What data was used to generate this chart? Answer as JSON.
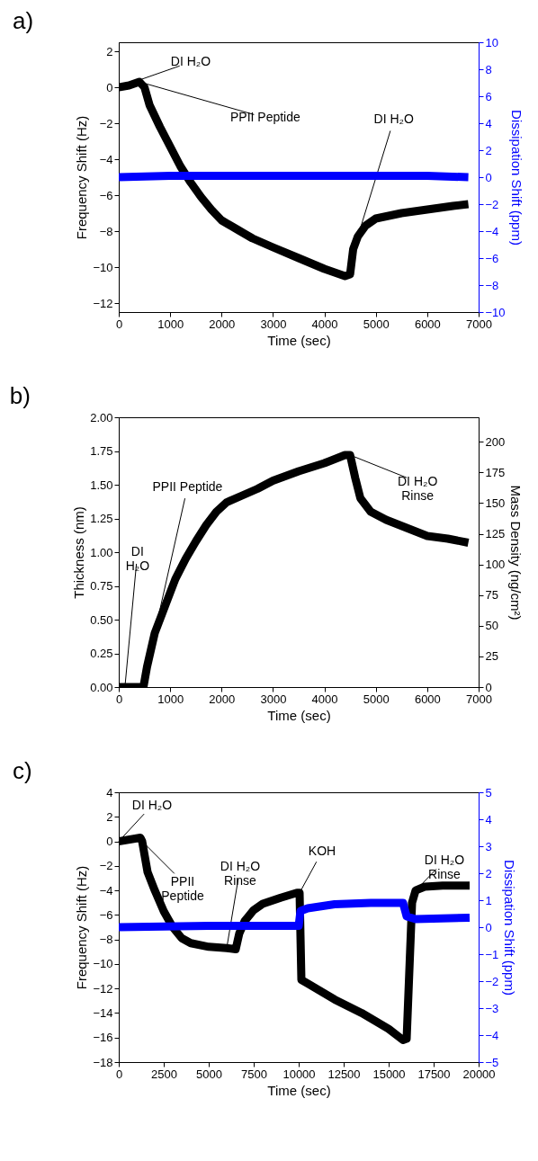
{
  "chart_data": [
    {
      "type": "line",
      "title": "a)",
      "xlabel": "Time (sec)",
      "ylabel": "Frequency Shift (Hz)",
      "y2label": "Dissipation Shift (ppm)",
      "xlim": [
        0,
        7000
      ],
      "xticks": [
        0,
        1000,
        2000,
        3000,
        4000,
        5000,
        6000,
        7000
      ],
      "ylim": [
        -12.5,
        2.5
      ],
      "yticks": [
        -12,
        -10,
        -8,
        -6,
        -4,
        -2,
        0,
        2
      ],
      "y2lim": [
        -10,
        10
      ],
      "y2ticks": [
        -10,
        -8,
        -6,
        -4,
        -2,
        0,
        2,
        4,
        6,
        8,
        10
      ],
      "series": [
        {
          "color": "#000000",
          "x": [
            0,
            200,
            400,
            500,
            600,
            800,
            1000,
            1200,
            1400,
            1600,
            1800,
            2000,
            2300,
            2600,
            3000,
            3500,
            4000,
            4400,
            4500,
            4560,
            4650,
            4800,
            5000,
            5500,
            6000,
            6500,
            6800
          ],
          "values": [
            0,
            0.1,
            0.3,
            0,
            -1,
            -2.2,
            -3.3,
            -4.4,
            -5.3,
            -6.1,
            -6.8,
            -7.4,
            -7.9,
            -8.4,
            -8.9,
            -9.5,
            -10.1,
            -10.5,
            -10.4,
            -9,
            -8.3,
            -7.7,
            -7.3,
            -7,
            -6.8,
            -6.6,
            -6.5
          ]
        },
        {
          "color": "#0000ff",
          "axis": "y2",
          "x": [
            0,
            1000,
            2000,
            3000,
            4000,
            5000,
            6000,
            6800
          ],
          "values": [
            0,
            0.1,
            0.1,
            0.1,
            0.1,
            0.1,
            0.1,
            0
          ]
        }
      ],
      "annotations": [
        {
          "text": "DI H₂O",
          "x": 0,
          "y": 0
        },
        {
          "text": "PPII Peptide",
          "x": 400,
          "y": 0.3
        },
        {
          "text": "DI H₂O",
          "x": 4650,
          "y": -8.3
        }
      ]
    },
    {
      "type": "line",
      "title": "b)",
      "xlabel": "Time (sec)",
      "ylabel": "Thickness (nm)",
      "y2label": "Mass Density (ng/cm²)",
      "xlim": [
        0,
        7000
      ],
      "xticks": [
        0,
        1000,
        2000,
        3000,
        4000,
        5000,
        6000,
        7000
      ],
      "ylim": [
        0,
        2
      ],
      "yticks": [
        {
          "value": 0,
          "label": "0.00"
        },
        {
          "value": 0.25,
          "label": "0.25"
        },
        {
          "value": 0.5,
          "label": "0.50"
        },
        {
          "value": 0.75,
          "label": "0.75"
        },
        {
          "value": 1,
          "label": "1.00"
        },
        {
          "value": 1.25,
          "label": "1.25"
        },
        {
          "value": 1.5,
          "label": "1.50"
        },
        {
          "value": 1.75,
          "label": "1.75"
        },
        {
          "value": 2,
          "label": "2.00"
        }
      ],
      "y2lim": [
        0,
        220
      ],
      "y2ticks": [
        0,
        25,
        50,
        75,
        100,
        125,
        150,
        175,
        200
      ],
      "series": [
        {
          "color": "#000000",
          "x": [
            0,
            120,
            400,
            480,
            550,
            700,
            900,
            1100,
            1300,
            1500,
            1700,
            1900,
            2100,
            2400,
            2700,
            3000,
            3500,
            4000,
            4400,
            4500,
            4600,
            4700,
            4900,
            5200,
            5600,
            6000,
            6400,
            6800
          ],
          "values": [
            0,
            0,
            0,
            0,
            0.15,
            0.4,
            0.6,
            0.8,
            0.95,
            1.08,
            1.2,
            1.3,
            1.37,
            1.42,
            1.47,
            1.53,
            1.6,
            1.66,
            1.72,
            1.72,
            1.55,
            1.4,
            1.3,
            1.24,
            1.18,
            1.12,
            1.1,
            1.07
          ]
        }
      ],
      "annotations": [
        {
          "text": "DI\nH₂O",
          "x": 120,
          "y": 0
        },
        {
          "text": "PPII Peptide",
          "x": 550,
          "y": 0.15
        },
        {
          "text": "DI H₂O\nRinse",
          "x": 4500,
          "y": 1.72
        }
      ]
    },
    {
      "type": "line",
      "title": "c)",
      "xlabel": "Time (sec)",
      "ylabel": "Frequency Shift (Hz)",
      "y2label": "Dissipation Shift (ppm)",
      "xlim": [
        0,
        20000
      ],
      "xticks": [
        0,
        2500,
        5000,
        7500,
        10000,
        12500,
        15000,
        17500,
        20000
      ],
      "ylim": [
        -18,
        4
      ],
      "yticks": [
        -18,
        -16,
        -14,
        -12,
        -10,
        -8,
        -6,
        -4,
        -2,
        0,
        2,
        4
      ],
      "y2lim": [
        -5,
        5
      ],
      "y2ticks": [
        -5,
        -4,
        -3,
        -2,
        -1,
        0,
        1,
        2,
        3,
        4,
        5
      ],
      "series": [
        {
          "color": "#000000",
          "x": [
            0,
            1200,
            1300,
            1600,
            2000,
            2500,
            3000,
            3500,
            4000,
            5000,
            6000,
            6500,
            6700,
            7000,
            7500,
            8000,
            9000,
            9900,
            10050,
            10150,
            10500,
            12000,
            13500,
            15000,
            15800,
            16000,
            16300,
            16500,
            17000,
            18000,
            19500
          ],
          "values": [
            0,
            0.3,
            0,
            -2.5,
            -4,
            -5.7,
            -7,
            -7.9,
            -8.3,
            -8.6,
            -8.7,
            -8.8,
            -7.5,
            -6.5,
            -5.6,
            -5.1,
            -4.6,
            -4.2,
            -4.2,
            -11.3,
            -11.6,
            -12.9,
            -14,
            -15.3,
            -16.2,
            -16.1,
            -5,
            -4,
            -3.7,
            -3.6,
            -3.6
          ]
        },
        {
          "color": "#0000ff",
          "axis": "y2",
          "x": [
            0,
            5000,
            10000,
            10100,
            10500,
            12000,
            14000,
            15800,
            16000,
            16500,
            19500
          ],
          "values": [
            0,
            0.05,
            0.05,
            0.6,
            0.7,
            0.85,
            0.9,
            0.9,
            0.4,
            0.3,
            0.35
          ]
        }
      ],
      "annotations": [
        {
          "text": "DI H₂O",
          "x": 0,
          "y": 0
        },
        {
          "text": "PPII\nPeptide",
          "x": 1300,
          "y": 0
        },
        {
          "text": "DI H₂O\nRinse",
          "x": 6000,
          "y": -8.7
        },
        {
          "text": "KOH",
          "x": 10050,
          "y": -4.2
        },
        {
          "text": "DI H₂O\nRinse",
          "x": 16500,
          "y": -4
        }
      ]
    }
  ]
}
